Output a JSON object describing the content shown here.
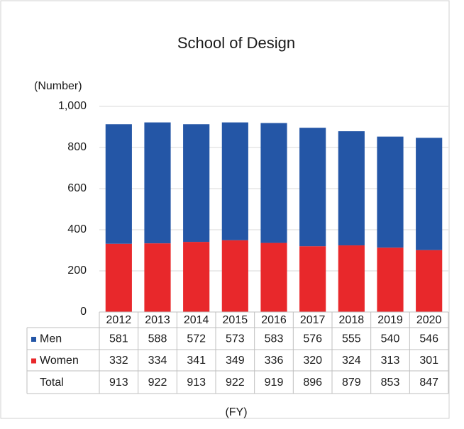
{
  "chart_data": {
    "type": "stacked_bar",
    "title": "School of Design",
    "y_label": "(Number)",
    "x_label": "(FY)",
    "categories": [
      "2012",
      "2013",
      "2014",
      "2015",
      "2016",
      "2017",
      "2018",
      "2019",
      "2020"
    ],
    "series": [
      {
        "name": "Men",
        "color": "#2456a6",
        "values": [
          581,
          588,
          572,
          573,
          583,
          576,
          555,
          540,
          546
        ]
      },
      {
        "name": "Women",
        "color": "#e8282b",
        "values": [
          332,
          334,
          341,
          349,
          336,
          320,
          324,
          313,
          301
        ]
      }
    ],
    "totals": {
      "name": "Total",
      "values": [
        913,
        922,
        913,
        922,
        919,
        896,
        879,
        853,
        847
      ]
    },
    "stack_order": [
      1,
      0
    ],
    "ylim": [
      0,
      1000
    ],
    "yticks": [
      0,
      200,
      400,
      600,
      800,
      {
        "value": 1000,
        "label": "1,000"
      }
    ],
    "grid": true
  }
}
